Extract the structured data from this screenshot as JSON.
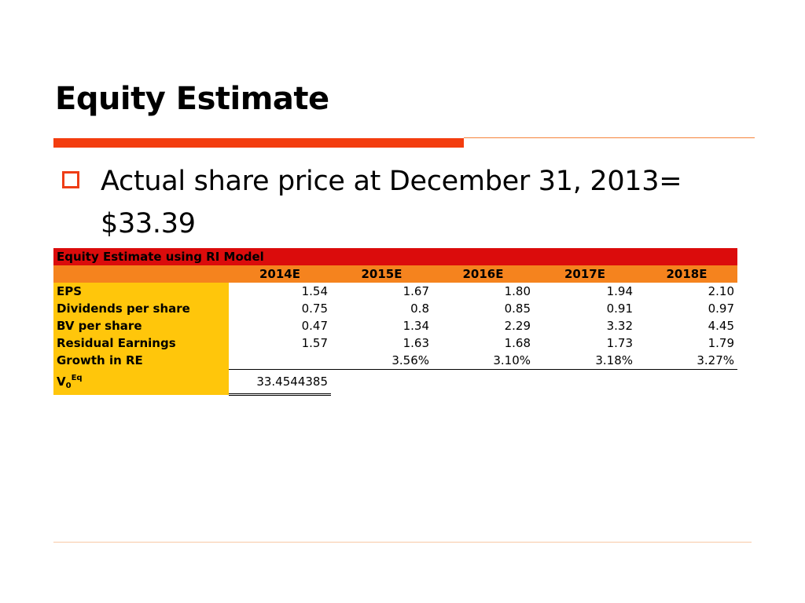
{
  "slide": {
    "title": "Equity Estimate",
    "bullet_line1": "Actual share price at December 31, 2013=",
    "bullet_line2": "$33.39"
  },
  "table": {
    "title": "Equity Estimate using RI Model",
    "columns": [
      "2014E",
      "2015E",
      "2016E",
      "2017E",
      "2018E"
    ],
    "rows": [
      {
        "label": "EPS",
        "values": [
          "1.54",
          "1.67",
          "1.80",
          "1.94",
          "2.10"
        ]
      },
      {
        "label": "Dividends per share",
        "values": [
          "0.75",
          "0.8",
          "0.85",
          "0.91",
          "0.97"
        ]
      },
      {
        "label": "BV per share",
        "values": [
          "0.47",
          "1.34",
          "2.29",
          "3.32",
          "4.45"
        ]
      },
      {
        "label": "Residual Earnings",
        "values": [
          "1.57",
          "1.63",
          "1.68",
          "1.73",
          "1.79"
        ]
      },
      {
        "label": "Growth in RE",
        "values": [
          "",
          "3.56%",
          "3.10%",
          "3.18%",
          "3.27%"
        ]
      }
    ],
    "v0": {
      "base": "V",
      "sub": "0",
      "sup": "Eq",
      "value": "33.4544385"
    }
  },
  "colors": {
    "accent": "#F33D0F",
    "table_title_bg": "#DB0C0C",
    "table_header_bg": "#F5831E",
    "label_bg": "#FFC60B"
  }
}
